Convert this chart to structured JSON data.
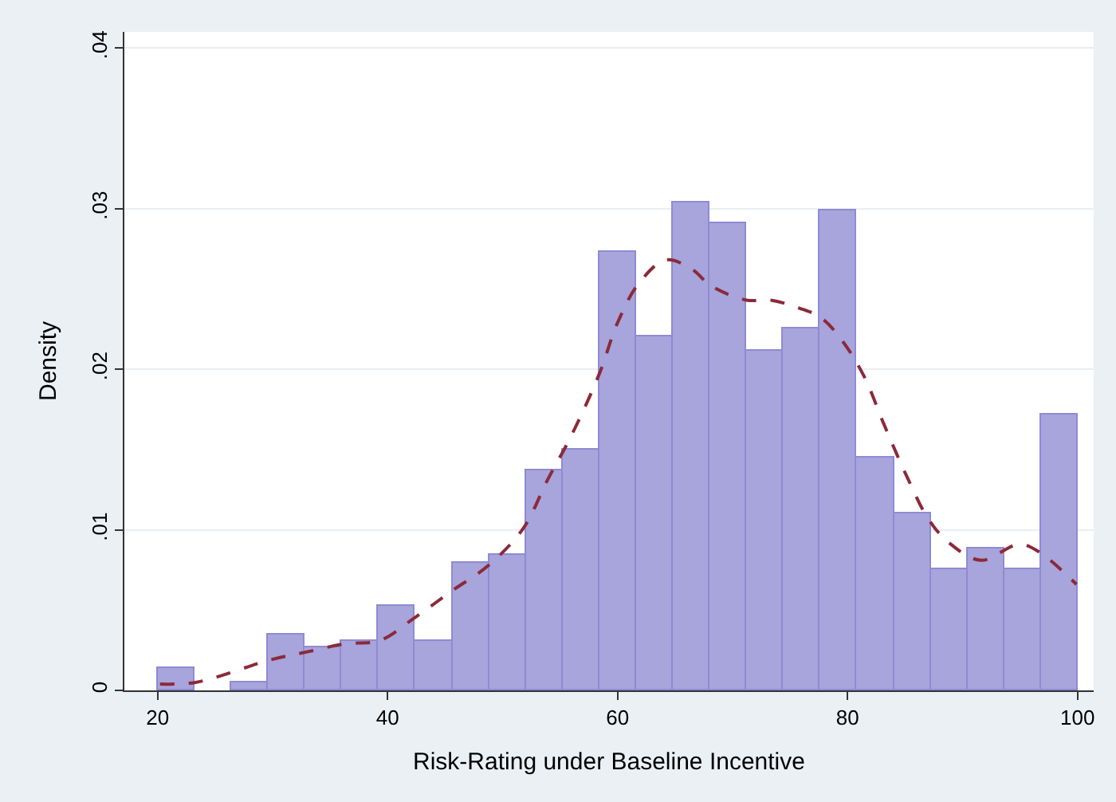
{
  "chart_data": {
    "type": "histogram",
    "xlabel": "Risk-Rating under Baseline Incentive",
    "ylabel": "Density",
    "bins": [
      20,
      23.2,
      26.4,
      29.6,
      32.8,
      36,
      39.2,
      42.4,
      45.6,
      48.8,
      52,
      55.2,
      58.4,
      61.6,
      64.8,
      68,
      71.2,
      74.4,
      77.6,
      80.8,
      84,
      87.2,
      90.4,
      93.6,
      96.8,
      100
    ],
    "values": [
      0.0014,
      0,
      0.0005,
      0.0035,
      0.0027,
      0.0031,
      0.0053,
      0.0031,
      0.0079,
      0.0084,
      0.0137,
      0.015,
      0.0273,
      0.022,
      0.0304,
      0.0291,
      0.0211,
      0.0225,
      0.0299,
      0.0145,
      0.011,
      0.0075,
      0.0088,
      0.0075,
      0.0172
    ],
    "color": "#a8a4dc",
    "series": [
      {
        "type": "line",
        "color": "#8b2a3a",
        "line_style": "dashed",
        "x": [
          20.2,
          23.3,
          29.8,
          33,
          36.3,
          39.3,
          42.3,
          45.6,
          48.8,
          51.8,
          53.9,
          56,
          58.4,
          60,
          61.8,
          64.2,
          66.5,
          68.1,
          71.2,
          73.3,
          75.8,
          77.7,
          79.5,
          81.4,
          83.2,
          85.1,
          87,
          88.8,
          91.6,
          94.9,
          96.7,
          99.9
        ],
        "values": [
          0.0004,
          0.0005,
          0.0019,
          0.0024,
          0.0029,
          0.0031,
          0.0045,
          0.0062,
          0.0078,
          0.0101,
          0.0131,
          0.0159,
          0.0197,
          0.0229,
          0.0253,
          0.0268,
          0.0262,
          0.0252,
          0.0243,
          0.0243,
          0.0238,
          0.0232,
          0.0218,
          0.0196,
          0.0165,
          0.0134,
          0.0107,
          0.0092,
          0.0081,
          0.0091,
          0.0086,
          0.0066
        ]
      }
    ],
    "xlim": [
      17.1,
      101.4
    ],
    "xticks": [
      20,
      40,
      60,
      80,
      100
    ],
    "ylim": [
      0,
      0.041
    ],
    "yticks": [
      0,
      {
        "value": 0.01,
        "label": ".01"
      },
      {
        "value": 0.02,
        "label": ".02"
      },
      {
        "value": 0.03,
        "label": ".03"
      },
      {
        "value": 0.04,
        "label": ".04"
      }
    ],
    "grid": "y"
  }
}
